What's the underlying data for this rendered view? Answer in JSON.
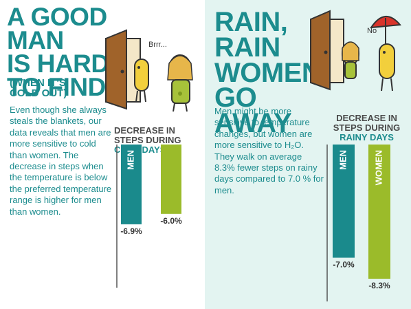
{
  "left": {
    "headline": "A GOOD MAN\nIS HARD\nTO FIND",
    "subhead": "(WHEN IT'S\n COLD OUT)",
    "body": "Even though she always steals the blankets, our data reveals that men are more sensitive to cold than women. The decrease in steps when the temperature is below the preferred temperature range is higher for men than women.",
    "speech": "Brrr...",
    "chart_title_plain": "DECREASE IN STEPS DURING ",
    "chart_title_highlight": "COLD DAYS"
  },
  "right": {
    "headline": "RAIN,\nRAIN\nWOMEN\nGO AWAY",
    "body": "Men might be more sensitive to temperature changes, but women are more sensitive to H₂O. They walk on average 8.3% fewer steps on rainy days compared to 7.0 % for men.",
    "speech": "No",
    "chart_title_plain": "DECREASE IN STEPS DURING ",
    "chart_title_highlight": "RAINY DAYS"
  },
  "colors": {
    "men": "#1a8a8c",
    "women": "#9bbb2a",
    "axis": "#555555",
    "text": "#1c8c8e",
    "right_bg": "#e3f4f1"
  },
  "chart_data": [
    {
      "type": "bar",
      "title": "DECREASE IN STEPS DURING COLD DAYS",
      "categories": [
        "MEN",
        ""
      ],
      "values": [
        -6.9,
        -6.0
      ],
      "data_labels": [
        "-6.9%",
        "-6.0%"
      ],
      "colors": [
        "#1a8a8c",
        "#9bbb2a"
      ],
      "ylim": [
        -9.5,
        0
      ],
      "grid": false
    },
    {
      "type": "bar",
      "title": "DECREASE IN STEPS DURING RAINY DAYS",
      "categories": [
        "MEN",
        "WOMEN"
      ],
      "values": [
        -7.0,
        -8.3
      ],
      "data_labels": [
        "-7.0%",
        "-8.3%"
      ],
      "colors": [
        "#1a8a8c",
        "#9bbb2a"
      ],
      "ylim": [
        -9.5,
        0
      ],
      "grid": false
    }
  ]
}
